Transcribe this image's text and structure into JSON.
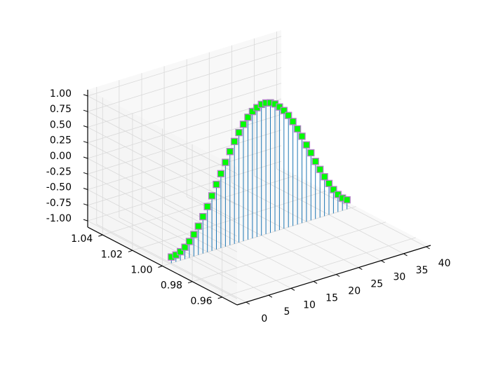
{
  "chart_data": {
    "type": "scatter",
    "projection": "3d",
    "title": "",
    "xlabel": "",
    "ylabel": "",
    "zlabel": "",
    "xlim": [
      -2,
      41
    ],
    "ylim": [
      0.95,
      1.05
    ],
    "zlim": [
      -1.1,
      1.1
    ],
    "xticks": [
      "0",
      "5",
      "10",
      "15",
      "20",
      "25",
      "30",
      "35",
      "40"
    ],
    "yticks": [
      "0.96",
      "0.98",
      "1.00",
      "1.02",
      "1.04"
    ],
    "zticks": [
      "-1.00",
      "-0.75",
      "-0.50",
      "-0.25",
      "0.00",
      "0.25",
      "0.50",
      "0.75",
      "1.00"
    ],
    "grid": true,
    "stems": true,
    "marker": "square",
    "marker_face_color": "#00ff00",
    "marker_edge_color": "#b07cc6",
    "stem_color": "#1f77b4",
    "series": [
      {
        "x": [
          0,
          1,
          2,
          3,
          4,
          5,
          6,
          7,
          8,
          9,
          10,
          11,
          12,
          13,
          14,
          15,
          16,
          17,
          18,
          19,
          20,
          21,
          22,
          23,
          24,
          25,
          26,
          27,
          28,
          29,
          30,
          31,
          32,
          33,
          34,
          35,
          36,
          37,
          38,
          39
        ],
        "y": [
          1,
          1,
          1,
          1,
          1,
          1,
          1,
          1,
          1,
          1,
          1,
          1,
          1,
          1,
          1,
          1,
          1,
          1,
          1,
          1,
          1,
          1,
          1,
          1,
          1,
          1,
          1,
          1,
          1,
          1,
          1,
          1,
          1,
          1,
          1,
          1,
          1,
          1,
          1,
          1
        ],
        "z": [
          -1.0,
          -0.99,
          -0.96,
          -0.91,
          -0.84,
          -0.75,
          -0.64,
          -0.51,
          -0.37,
          -0.22,
          -0.06,
          0.09,
          0.25,
          0.4,
          0.54,
          0.66,
          0.77,
          0.86,
          0.93,
          0.97,
          1.0,
          1.0,
          0.98,
          0.94,
          0.87,
          0.79,
          0.69,
          0.57,
          0.43,
          0.29,
          0.13,
          -0.02,
          -0.18,
          -0.33,
          -0.47,
          -0.6,
          -0.72,
          -0.82,
          -0.9,
          -0.95
        ]
      }
    ]
  }
}
